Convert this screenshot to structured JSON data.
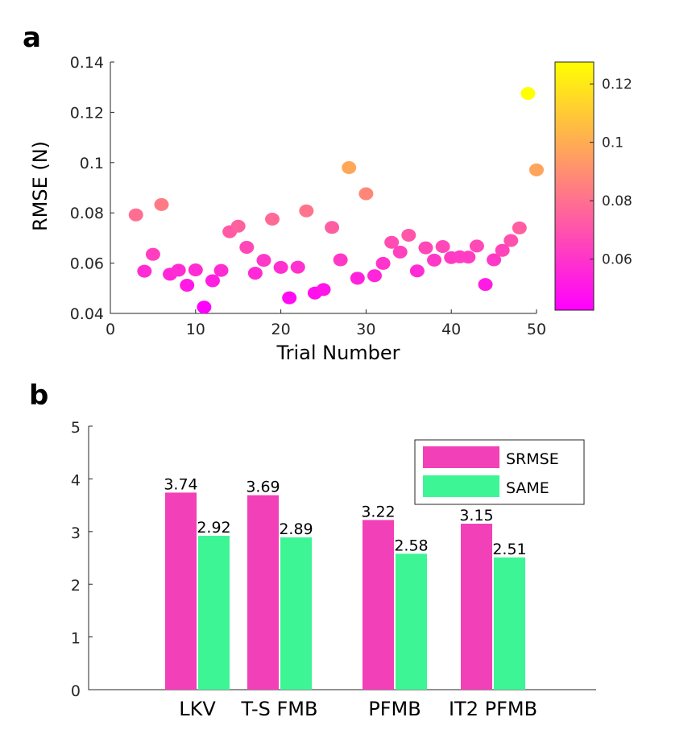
{
  "panels": {
    "a": "a",
    "b": "b"
  },
  "colors": {
    "srmse": "#f240b8",
    "same": "#3ef596",
    "colormap_low": "#ff00ff",
    "colormap_high": "#ffff00",
    "axis": "#262626"
  },
  "chart_data": [
    {
      "type": "scatter",
      "panel": "a",
      "title": "",
      "xlabel": "Trial Number",
      "ylabel": "RMSE (N)",
      "xlim": [
        0,
        50
      ],
      "ylim": [
        0.04,
        0.14
      ],
      "xticks": [
        0,
        10,
        20,
        30,
        40,
        50
      ],
      "yticks": [
        "0.04",
        "0.06",
        "0.08",
        "0.1",
        "0.12",
        "0.14"
      ],
      "grid": false,
      "colorbar": {
        "range": [
          0.0425,
          0.1275
        ],
        "ticks": [
          "0.06",
          "0.08",
          "0.1",
          "0.12"
        ],
        "tick_values": [
          0.06,
          0.08,
          0.1,
          0.12
        ],
        "colormap": "spring",
        "position": "right"
      },
      "x": [
        3,
        4,
        5,
        6,
        7,
        8,
        9,
        10,
        11,
        12,
        13,
        14,
        15,
        16,
        17,
        18,
        19,
        20,
        21,
        22,
        23,
        24,
        25,
        26,
        27,
        28,
        29,
        30,
        31,
        32,
        33,
        34,
        35,
        36,
        37,
        38,
        39,
        40,
        41,
        42,
        43,
        44,
        45,
        46,
        47,
        48,
        49,
        50
      ],
      "y": [
        0.0792,
        0.0568,
        0.0635,
        0.0833,
        0.0556,
        0.0572,
        0.0512,
        0.0573,
        0.0425,
        0.053,
        0.0571,
        0.0725,
        0.0747,
        0.0663,
        0.056,
        0.0611,
        0.0775,
        0.0583,
        0.0462,
        0.0584,
        0.0808,
        0.0481,
        0.0495,
        0.0742,
        0.0613,
        0.098,
        0.054,
        0.0876,
        0.055,
        0.0599,
        0.0683,
        0.0644,
        0.0711,
        0.0569,
        0.0661,
        0.0612,
        0.0666,
        0.0622,
        0.0625,
        0.0624,
        0.0668,
        0.0515,
        0.0613,
        0.0651,
        0.069,
        0.074,
        0.1275,
        0.0971
      ]
    },
    {
      "type": "bar",
      "panel": "b",
      "title": "",
      "xlabel": "",
      "ylabel": "",
      "categories": [
        "LKV",
        "T-S FMB",
        "PFMB",
        "IT2 PFMB"
      ],
      "ylim": [
        0,
        5
      ],
      "yticks": [
        "0",
        "1",
        "2",
        "3",
        "4",
        "5"
      ],
      "grid": false,
      "legend": "top-right",
      "series": [
        {
          "name": "SRMSE",
          "values": [
            3.74,
            3.69,
            3.22,
            3.15
          ],
          "labels": [
            "3.74",
            "3.69",
            "3.22",
            "3.15"
          ]
        },
        {
          "name": "SAME",
          "values": [
            2.92,
            2.89,
            2.58,
            2.51
          ],
          "labels": [
            "2.92",
            "2.89",
            "2.58",
            "2.51"
          ]
        }
      ]
    }
  ]
}
